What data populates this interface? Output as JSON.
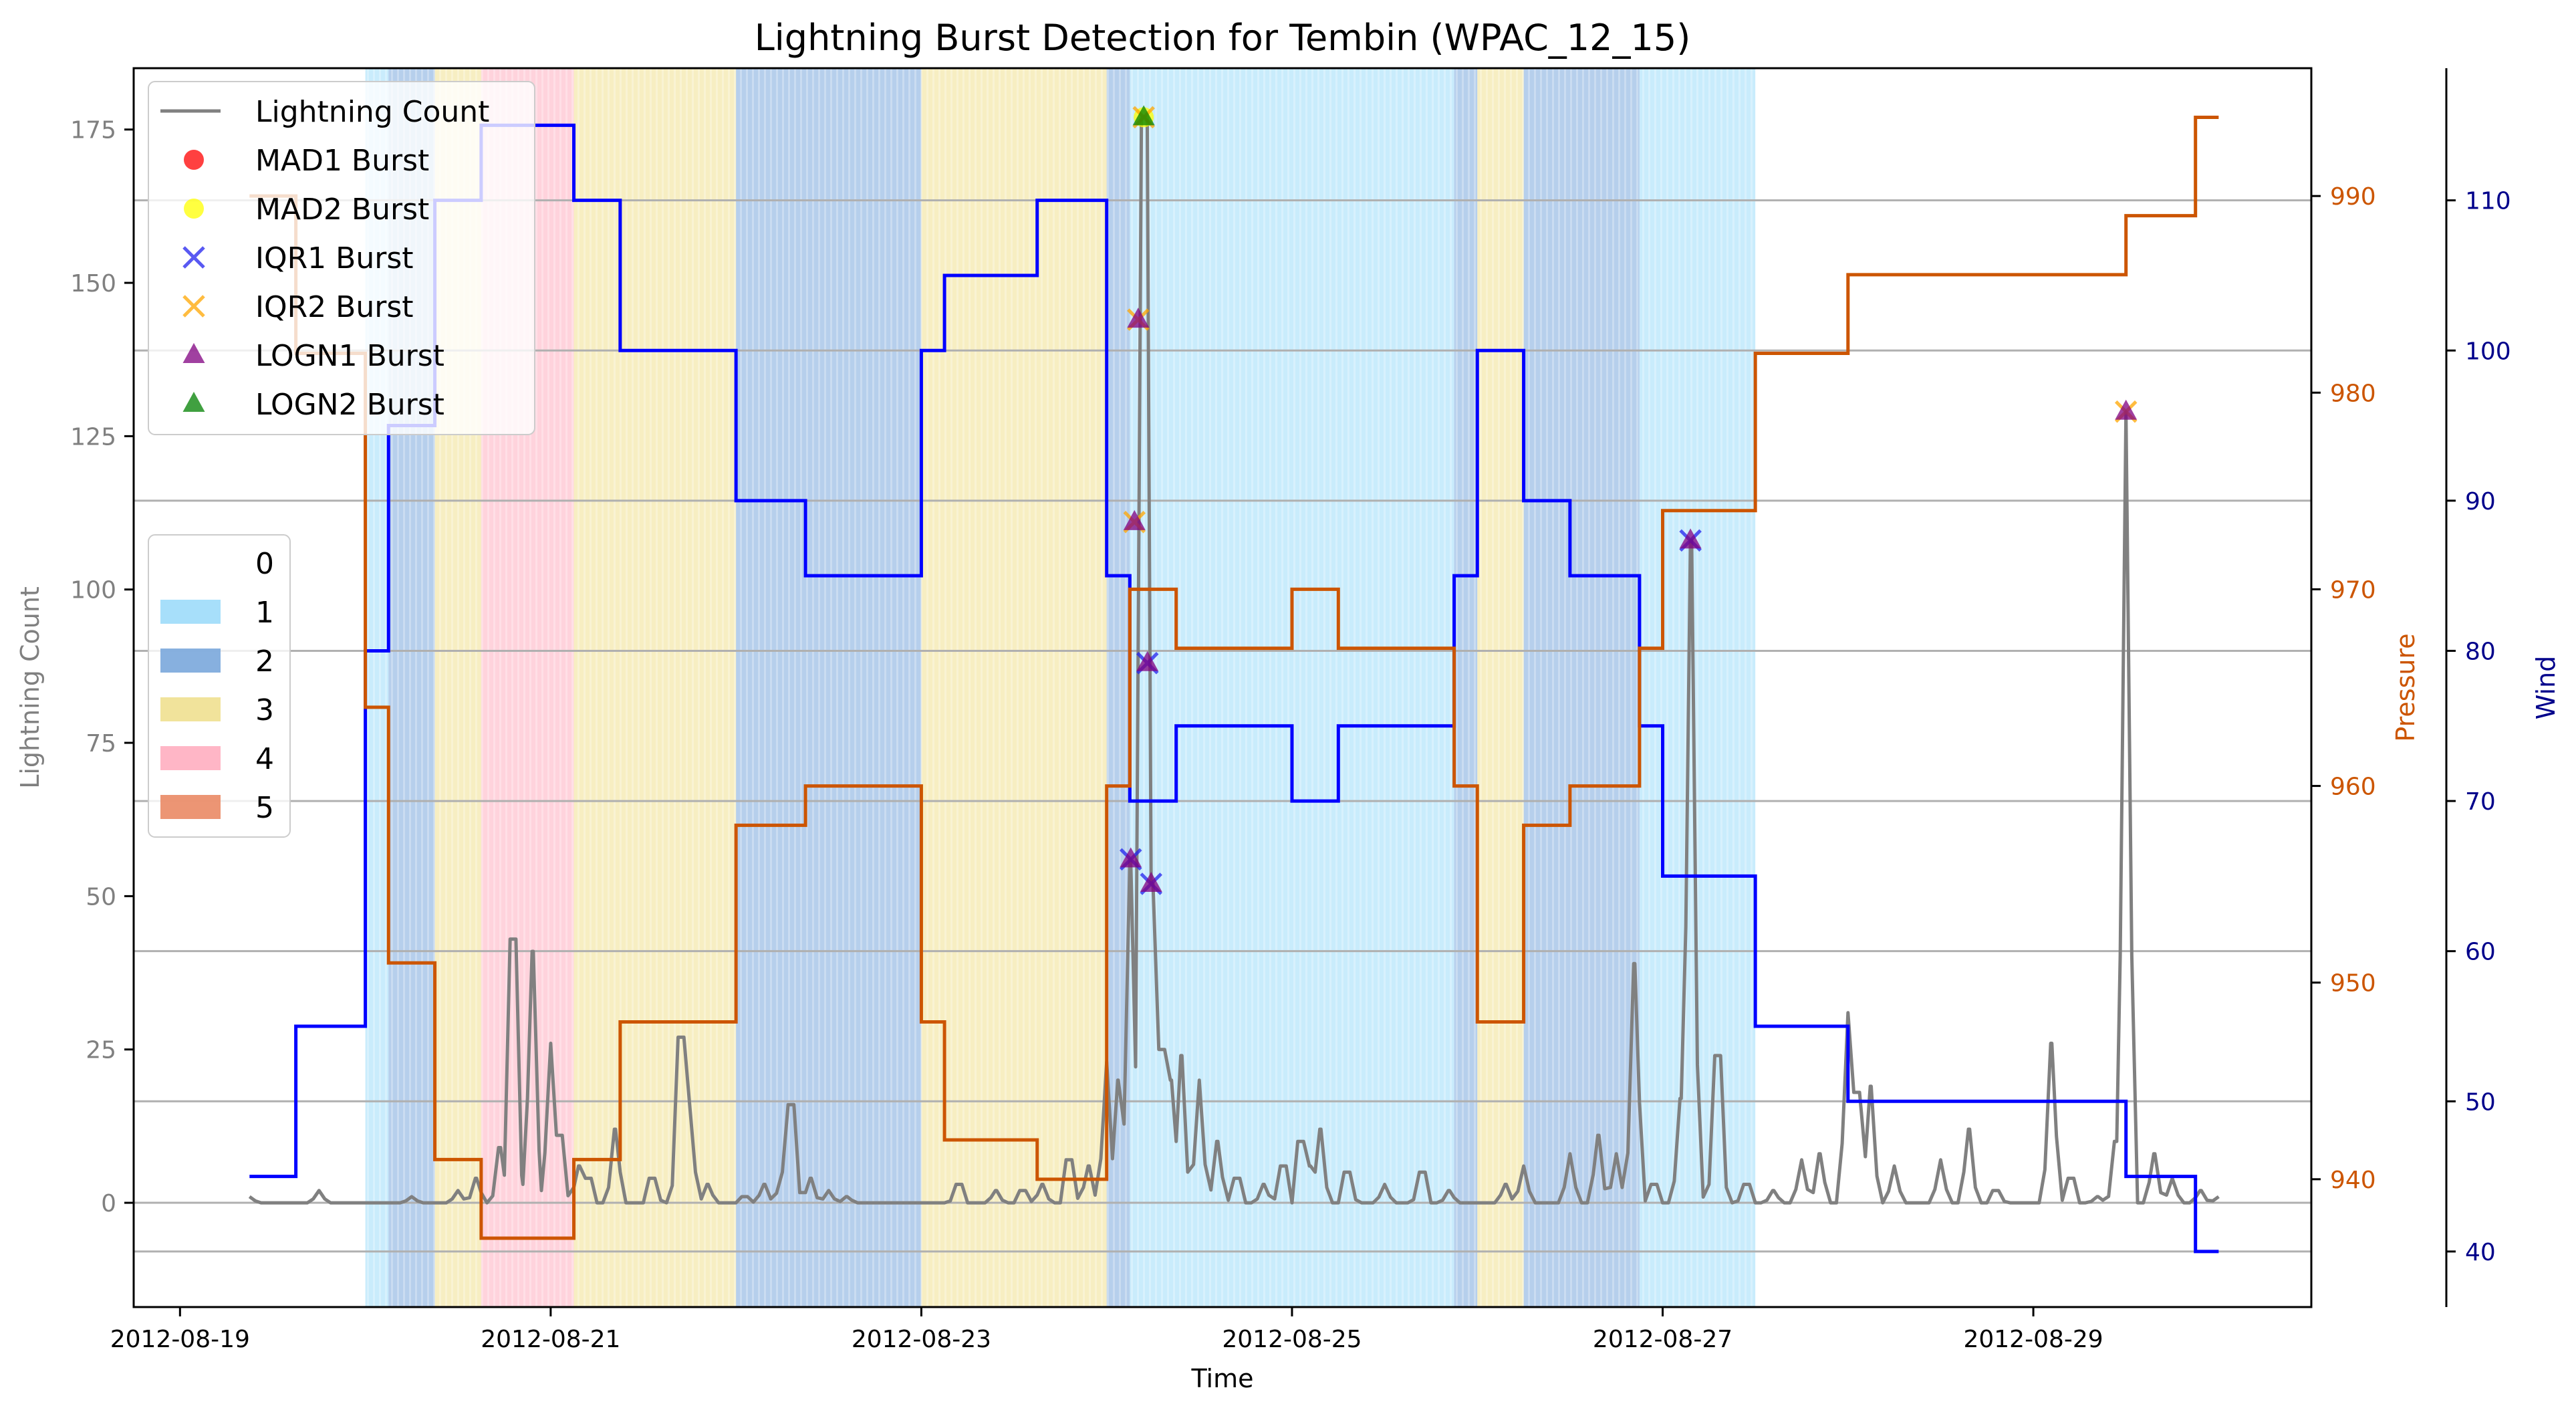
{
  "chart_data": {
    "type": "line",
    "title": "Lightning Burst Detection for Tembin (WPAC_12_15)",
    "xlabel": "Time",
    "ylabel_left": "Lightning Count",
    "ylabel_pressure": "Pressure",
    "ylabel_wind": "Wind",
    "x_ticks": [
      "2012-08-19",
      "2012-08-21",
      "2012-08-23",
      "2012-08-25",
      "2012-08-27",
      "2012-08-29"
    ],
    "x_range_days": [
      -0.25,
      11.5
    ],
    "y_left_ticks": [
      0,
      25,
      50,
      75,
      100,
      125,
      150,
      175
    ],
    "y_left_range": [
      -17,
      185
    ],
    "y_pressure_ticks": [
      940,
      950,
      960,
      970,
      980,
      990
    ],
    "y_pressure_range": [
      933.5,
      996.5
    ],
    "y_wind_ticks": [
      40,
      50,
      60,
      70,
      80,
      90,
      100,
      110
    ],
    "y_wind_range": [
      36.3,
      118.8
    ],
    "grid": "horizontal",
    "colors": {
      "lightning": "#808080",
      "pressure": "#cc5500",
      "wind": "#0000ff",
      "cat0": "#ffffff",
      "cat1": "#9ddcf9",
      "cat2": "#7aa7dc",
      "cat3": "#f0e090",
      "cat4": "#ffaec0",
      "cat5": "#ea8a65",
      "mad1": "#ff0000",
      "mad2": "#ffff00",
      "iqr1": "#2222ee",
      "iqr2": "#ffa500",
      "logn1": "#800080",
      "logn2": "#008000",
      "grid": "#b0b0b0",
      "pressure_tick": "#cc5500",
      "wind_tick": "#00008b",
      "lightning_tick": "#808080"
    },
    "category_spans": [
      {
        "start": 1.0,
        "end": 1.125,
        "cat": 1
      },
      {
        "start": 1.125,
        "end": 1.375,
        "cat": 2
      },
      {
        "start": 1.375,
        "end": 1.625,
        "cat": 3
      },
      {
        "start": 1.625,
        "end": 2.125,
        "cat": 4
      },
      {
        "start": 2.125,
        "end": 3.0,
        "cat": 3
      },
      {
        "start": 3.0,
        "end": 4.0,
        "cat": 2
      },
      {
        "start": 4.0,
        "end": 5.0,
        "cat": 3
      },
      {
        "start": 5.0,
        "end": 5.125,
        "cat": 2
      },
      {
        "start": 5.125,
        "end": 6.875,
        "cat": 1
      },
      {
        "start": 6.875,
        "end": 7.0,
        "cat": 2
      },
      {
        "start": 7.0,
        "end": 7.25,
        "cat": 3
      },
      {
        "start": 7.25,
        "end": 7.875,
        "cat": 2
      },
      {
        "start": 7.875,
        "end": 8.5,
        "cat": 1
      }
    ],
    "wind_steps": [
      [
        0.375,
        45
      ],
      [
        0.625,
        55
      ],
      [
        1.0,
        80
      ],
      [
        1.125,
        95
      ],
      [
        1.375,
        110
      ],
      [
        1.625,
        115
      ],
      [
        2.125,
        110
      ],
      [
        2.375,
        100
      ],
      [
        3.0,
        90
      ],
      [
        3.375,
        85
      ],
      [
        4.0,
        100
      ],
      [
        4.125,
        105
      ],
      [
        4.625,
        110
      ],
      [
        5.0,
        85
      ],
      [
        5.125,
        70
      ],
      [
        5.375,
        75
      ],
      [
        6.0,
        70
      ],
      [
        6.25,
        75
      ],
      [
        6.875,
        85
      ],
      [
        7.0,
        100
      ],
      [
        7.25,
        90
      ],
      [
        7.5,
        85
      ],
      [
        7.875,
        75
      ],
      [
        8.0,
        65
      ],
      [
        8.5,
        55
      ],
      [
        9.0,
        50
      ],
      [
        10.5,
        45
      ],
      [
        10.875,
        40
      ],
      [
        11.0,
        40
      ]
    ],
    "pressure_steps": [
      [
        0.375,
        990
      ],
      [
        0.625,
        982
      ],
      [
        1.0,
        964
      ],
      [
        1.125,
        951
      ],
      [
        1.375,
        941
      ],
      [
        1.625,
        937
      ],
      [
        2.125,
        941
      ],
      [
        2.375,
        948
      ],
      [
        3.0,
        958
      ],
      [
        3.375,
        960
      ],
      [
        4.0,
        948
      ],
      [
        4.125,
        942
      ],
      [
        4.625,
        940
      ],
      [
        5.0,
        960
      ],
      [
        5.125,
        970
      ],
      [
        5.375,
        967
      ],
      [
        6.0,
        970
      ],
      [
        6.25,
        967
      ],
      [
        6.875,
        960
      ],
      [
        7.0,
        948
      ],
      [
        7.25,
        958
      ],
      [
        7.5,
        960
      ],
      [
        7.875,
        967
      ],
      [
        8.0,
        974
      ],
      [
        8.5,
        982
      ],
      [
        9.0,
        986
      ],
      [
        10.5,
        989
      ],
      [
        10.875,
        994
      ],
      [
        11.0,
        994
      ]
    ],
    "lightning_peaks": [
      [
        0.375,
        1
      ],
      [
        0.75,
        2
      ],
      [
        1.25,
        1
      ],
      [
        1.5,
        2
      ],
      [
        1.6,
        4
      ],
      [
        1.73,
        9
      ],
      [
        1.8,
        43
      ],
      [
        1.85,
        3
      ],
      [
        1.9,
        41
      ],
      [
        1.95,
        2
      ],
      [
        2.0,
        26
      ],
      [
        2.05,
        11
      ],
      [
        2.15,
        6
      ],
      [
        2.2,
        4
      ],
      [
        2.35,
        12
      ],
      [
        2.55,
        4
      ],
      [
        2.7,
        27
      ],
      [
        2.75,
        16
      ],
      [
        2.85,
        3
      ],
      [
        3.05,
        1
      ],
      [
        3.15,
        3
      ],
      [
        3.25,
        5
      ],
      [
        3.3,
        16
      ],
      [
        3.4,
        4
      ],
      [
        3.5,
        2
      ],
      [
        3.6,
        1
      ],
      [
        4.2,
        3
      ],
      [
        4.4,
        2
      ],
      [
        4.55,
        2
      ],
      [
        4.65,
        3
      ],
      [
        4.8,
        7
      ],
      [
        4.9,
        6
      ],
      [
        5.0,
        23
      ],
      [
        5.06,
        20
      ],
      [
        5.13,
        56
      ],
      [
        5.2,
        177
      ],
      [
        5.24,
        52
      ],
      [
        5.3,
        25
      ],
      [
        5.35,
        20
      ],
      [
        5.4,
        24
      ],
      [
        5.5,
        20
      ],
      [
        5.6,
        10
      ],
      [
        5.7,
        4
      ],
      [
        5.85,
        3
      ],
      [
        5.95,
        6
      ],
      [
        6.05,
        10
      ],
      [
        6.1,
        6
      ],
      [
        6.15,
        12
      ],
      [
        6.3,
        5
      ],
      [
        6.5,
        3
      ],
      [
        6.7,
        5
      ],
      [
        6.85,
        2
      ],
      [
        7.15,
        3
      ],
      [
        7.25,
        6
      ],
      [
        7.5,
        8
      ],
      [
        7.65,
        11
      ],
      [
        7.75,
        8
      ],
      [
        7.85,
        39
      ],
      [
        7.95,
        3
      ],
      [
        8.1,
        17
      ],
      [
        8.15,
        108
      ],
      [
        8.25,
        3
      ],
      [
        8.3,
        24
      ],
      [
        8.45,
        3
      ],
      [
        8.6,
        2
      ],
      [
        8.75,
        7
      ],
      [
        8.85,
        8
      ],
      [
        9.0,
        31
      ],
      [
        9.05,
        18
      ],
      [
        9.12,
        19
      ],
      [
        9.25,
        6
      ],
      [
        9.5,
        7
      ],
      [
        9.65,
        12
      ],
      [
        9.8,
        2
      ],
      [
        10.1,
        26
      ],
      [
        10.2,
        4
      ],
      [
        10.35,
        1
      ],
      [
        10.45,
        10
      ],
      [
        10.5,
        129
      ],
      [
        10.65,
        8
      ],
      [
        10.75,
        4
      ],
      [
        10.9,
        2
      ],
      [
        11.0,
        1
      ]
    ],
    "bursts": [
      {
        "x": 5.13,
        "y": 56,
        "types": [
          "iqr1",
          "logn1"
        ]
      },
      {
        "x": 5.15,
        "y": 111,
        "types": [
          "iqr2",
          "logn1"
        ]
      },
      {
        "x": 5.17,
        "y": 144,
        "types": [
          "iqr2",
          "logn1"
        ]
      },
      {
        "x": 5.2,
        "y": 177,
        "types": [
          "mad2",
          "iqr2",
          "logn2"
        ]
      },
      {
        "x": 5.22,
        "y": 88,
        "types": [
          "iqr1",
          "logn1"
        ]
      },
      {
        "x": 5.24,
        "y": 52,
        "types": [
          "iqr1",
          "logn1"
        ]
      },
      {
        "x": 8.15,
        "y": 108,
        "types": [
          "iqr1",
          "logn1"
        ]
      },
      {
        "x": 10.5,
        "y": 129,
        "types": [
          "iqr2",
          "logn1"
        ]
      }
    ]
  },
  "legend_series": {
    "lightning": "Lightning Count",
    "mad1": "MAD1 Burst",
    "mad2": "MAD2 Burst",
    "iqr1": "IQR1 Burst",
    "iqr2": "IQR2 Burst",
    "logn1": "LOGN1 Burst",
    "logn2": "LOGN2 Burst"
  },
  "legend_categories": [
    "0",
    "1",
    "2",
    "3",
    "4",
    "5"
  ]
}
